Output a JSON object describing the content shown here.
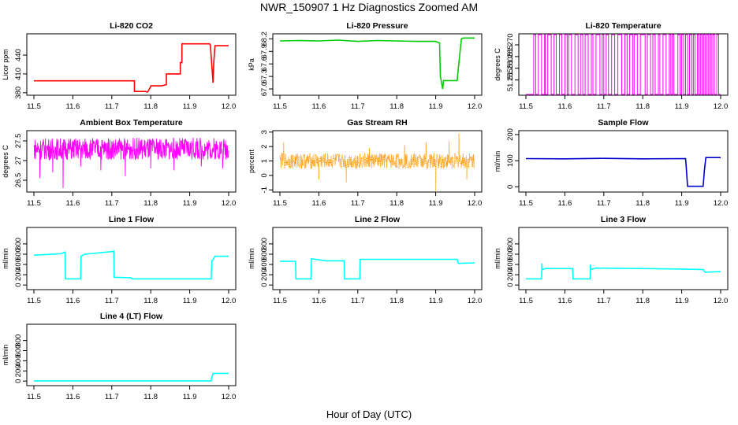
{
  "figure": {
    "title": "NWR_150907  1 Hz Diagnostics Zoomed AM",
    "xlabel": "Hour of Day (UTC)"
  },
  "chart_data": [
    {
      "type": "line",
      "title": "Li-820 CO2",
      "ylabel": "Licor ppm",
      "color": "#ff0000",
      "xlim": [
        11.5,
        12.0
      ],
      "ylim": [
        376,
        474
      ],
      "xticks": [
        "11.5",
        "11.6",
        "11.7",
        "11.8",
        "11.9",
        "12.0"
      ],
      "yticks": [
        {
          "v": 380,
          "label": "380"
        },
        {
          "v": 410,
          "label": "410"
        },
        {
          "v": 440,
          "label": "440"
        }
      ],
      "series": [
        {
          "x": [
            11.5,
            11.758,
            11.758,
            11.786,
            11.792,
            11.8,
            11.8,
            11.828,
            11.84,
            11.84,
            11.876,
            11.876,
            11.88,
            11.88,
            11.951,
            11.953,
            11.958,
            11.96,
            11.962,
            11.965,
            12.0
          ],
          "y": [
            399,
            399,
            382,
            382,
            381,
            390,
            391,
            391,
            393,
            410,
            410,
            428,
            428,
            458,
            458,
            456,
            412,
            396,
            430,
            455,
            455
          ]
        }
      ]
    },
    {
      "type": "line",
      "title": "Li-820 Pressure",
      "ylabel": "kPa",
      "color": "#00cc00",
      "xlim": [
        11.5,
        12.0
      ],
      "ylim": [
        66.85,
        68.32
      ],
      "xticks": [
        "11.5",
        "11.6",
        "11.7",
        "11.8",
        "11.9",
        "12.0"
      ],
      "yticks": [
        {
          "v": 67.0,
          "label": "67.0"
        },
        {
          "v": 67.3,
          "label": "67.3"
        },
        {
          "v": 67.6,
          "label": "67.6"
        },
        {
          "v": 67.9,
          "label": "67.9"
        },
        {
          "v": 68.2,
          "label": "68.2"
        }
      ],
      "series": [
        {
          "x": [
            11.5,
            11.55,
            11.6,
            11.65,
            11.7,
            11.75,
            11.8,
            11.85,
            11.9,
            11.91,
            11.912,
            11.918,
            11.92,
            11.955,
            11.958,
            11.966,
            11.97,
            12.0
          ],
          "y": [
            68.15,
            68.16,
            68.15,
            68.17,
            68.14,
            68.16,
            68.15,
            68.14,
            68.14,
            68.1,
            67.3,
            67.0,
            67.2,
            67.2,
            67.5,
            68.2,
            68.22,
            68.22
          ]
        }
      ]
    },
    {
      "type": "line",
      "title": "Li-820 Temperature",
      "ylabel": "degrees C",
      "color": "#ff00ff",
      "xlim": [
        11.5,
        12.0
      ],
      "ylim": [
        51.2485,
        51.2747
      ],
      "xticks": [
        "11.5",
        "11.6",
        "11.7",
        "11.8",
        "11.9",
        "12.0"
      ],
      "yticks": [
        {
          "v": 51.255,
          "label": "51.255"
        },
        {
          "v": 51.26,
          "label": "51.260"
        },
        {
          "v": 51.265,
          "label": "51.265"
        },
        {
          "v": 51.27,
          "label": "51.270"
        }
      ],
      "levels": [
        51.2485,
        51.2747
      ],
      "switch_times": [
        11.52,
        11.525,
        11.532,
        11.54,
        11.548,
        11.55,
        11.556,
        11.565,
        11.572,
        11.578,
        11.586,
        11.592,
        11.6,
        11.606,
        11.61,
        11.617,
        11.626,
        11.634,
        11.64,
        11.646,
        11.652,
        11.66,
        11.668,
        11.672,
        11.68,
        11.69,
        11.696,
        11.7,
        11.706,
        11.712,
        11.72,
        11.728,
        11.736,
        11.746,
        11.754,
        11.76,
        11.766,
        11.774,
        11.778,
        11.786,
        11.794,
        11.806,
        11.812,
        11.82,
        11.826,
        11.832,
        11.84,
        11.844,
        11.852,
        11.86,
        11.868,
        11.872,
        11.876,
        11.88,
        11.89,
        11.896,
        11.9,
        11.905,
        11.91,
        11.915,
        11.92,
        11.926,
        11.93,
        11.934,
        11.94,
        11.944,
        11.948,
        11.952,
        11.956,
        11.96,
        11.964,
        11.968,
        11.972,
        11.976,
        11.98,
        11.984,
        11.99,
        11.995
      ]
    },
    {
      "type": "line",
      "title": "Ambient Box Temperature",
      "ylabel": "degrees C",
      "color": "#ff00ff",
      "xlim": [
        11.5,
        12.0
      ],
      "ylim": [
        26.2,
        27.76
      ],
      "xticks": [
        "11.5",
        "11.6",
        "11.7",
        "11.8",
        "11.9",
        "12.0"
      ],
      "yticks": [
        {
          "v": 26.5,
          "label": "26.5"
        },
        {
          "v": 27.0,
          "label": "27"
        },
        {
          "v": 27.5,
          "label": "27.5"
        }
      ],
      "noise": {
        "mean": 27.3,
        "amp": 0.28,
        "low_spikes": [
          [
            11.515,
            26.55
          ],
          [
            11.548,
            26.7
          ],
          [
            11.575,
            26.3
          ],
          [
            11.62,
            26.85
          ],
          [
            11.672,
            26.75
          ],
          [
            11.735,
            26.6
          ],
          [
            11.8,
            26.8
          ],
          [
            11.86,
            26.75
          ],
          [
            11.93,
            26.85
          ],
          [
            11.985,
            26.8
          ]
        ]
      }
    },
    {
      "type": "scatter",
      "title": "Gas Stream RH",
      "ylabel": "percent",
      "color": "#ff9900",
      "xlim": [
        11.5,
        12.0
      ],
      "ylim": [
        -1.15,
        3.1
      ],
      "xticks": [
        "11.5",
        "11.6",
        "11.7",
        "11.8",
        "11.9",
        "12.0"
      ],
      "yticks": [
        {
          "v": -1,
          "label": "-1"
        },
        {
          "v": 0,
          "label": "0"
        },
        {
          "v": 1,
          "label": "1"
        },
        {
          "v": 2,
          "label": "2"
        },
        {
          "v": 3,
          "label": "3"
        }
      ],
      "noise": {
        "mean": 1.0,
        "amp": 0.55,
        "spikes": [
          [
            11.51,
            2.3
          ],
          [
            11.6,
            -0.3
          ],
          [
            11.67,
            -0.5
          ],
          [
            11.73,
            1.9
          ],
          [
            11.82,
            2.1
          ],
          [
            11.875,
            2.3
          ],
          [
            11.9,
            -1.1
          ],
          [
            11.935,
            2.4
          ],
          [
            11.96,
            2.9
          ],
          [
            11.98,
            -0.3
          ]
        ]
      }
    },
    {
      "type": "line",
      "title": "Sample Flow",
      "ylabel": "ml/min",
      "color": "#0000cc",
      "xlim": [
        11.5,
        12.0
      ],
      "ylim": [
        -20,
        215
      ],
      "xticks": [
        "11.5",
        "11.6",
        "11.7",
        "11.8",
        "11.9",
        "12.0"
      ],
      "yticks": [
        {
          "v": 0,
          "label": "0"
        },
        {
          "v": 100,
          "label": "100"
        },
        {
          "v": 200,
          "label": "200"
        }
      ],
      "series": [
        {
          "x": [
            11.5,
            11.6,
            11.7,
            11.8,
            11.91,
            11.912,
            11.915,
            11.955,
            11.958,
            11.962,
            12.0
          ],
          "y": [
            108,
            107,
            109,
            107,
            108,
            70,
            2,
            2,
            60,
            112,
            112
          ]
        }
      ]
    },
    {
      "type": "line",
      "title": "Line 1 Flow",
      "ylabel": "ml/min",
      "color": "#00ffff",
      "xlim": [
        11.5,
        12.0
      ],
      "ylim": [
        -90,
        1120
      ],
      "xticks": [
        "11.5",
        "11.6",
        "11.7",
        "11.8",
        "11.9",
        "12.0"
      ],
      "yticks": [
        {
          "v": 0,
          "label": "0"
        },
        {
          "v": 200,
          "label": "200"
        },
        {
          "v": 400,
          "label": "400"
        },
        {
          "v": 600,
          "label": "600"
        },
        {
          "v": 800,
          "label": "800"
        }
      ],
      "series": [
        {
          "x": [
            11.5,
            11.57,
            11.58,
            11.581,
            11.62,
            11.621,
            11.63,
            11.7,
            11.705,
            11.706,
            11.75,
            11.752,
            11.955,
            11.957,
            11.965,
            12.0
          ],
          "y": [
            580,
            610,
            640,
            120,
            120,
            560,
            600,
            650,
            660,
            150,
            140,
            120,
            120,
            460,
            560,
            560
          ]
        }
      ]
    },
    {
      "type": "line",
      "title": "Line 2 Flow",
      "ylabel": "ml/min",
      "color": "#00ffff",
      "xlim": [
        11.5,
        12.0
      ],
      "ylim": [
        -90,
        1120
      ],
      "xticks": [
        "11.5",
        "11.6",
        "11.7",
        "11.8",
        "11.9",
        "12.0"
      ],
      "yticks": [
        {
          "v": 0,
          "label": "0"
        },
        {
          "v": 200,
          "label": "200"
        },
        {
          "v": 400,
          "label": "400"
        },
        {
          "v": 600,
          "label": "600"
        },
        {
          "v": 800,
          "label": "800"
        }
      ],
      "series": [
        {
          "x": [
            11.5,
            11.54,
            11.541,
            11.58,
            11.581,
            11.62,
            11.665,
            11.666,
            11.705,
            11.706,
            11.8,
            11.9,
            11.955,
            11.958,
            12.0
          ],
          "y": [
            460,
            460,
            120,
            120,
            510,
            470,
            470,
            120,
            120,
            500,
            500,
            500,
            500,
            420,
            430
          ]
        }
      ]
    },
    {
      "type": "line",
      "title": "Line 3 Flow",
      "ylabel": "ml/min",
      "color": "#00ffff",
      "xlim": [
        11.5,
        12.0
      ],
      "ylim": [
        -90,
        1120
      ],
      "xticks": [
        "11.5",
        "11.6",
        "11.7",
        "11.8",
        "11.9",
        "12.0"
      ],
      "yticks": [
        {
          "v": 0,
          "label": "0"
        },
        {
          "v": 200,
          "label": "200"
        },
        {
          "v": 400,
          "label": "400"
        },
        {
          "v": 600,
          "label": "600"
        },
        {
          "v": 800,
          "label": "800"
        }
      ],
      "series": [
        {
          "x": [
            11.5,
            11.54,
            11.541,
            11.542,
            11.55,
            11.62,
            11.621,
            11.665,
            11.666,
            11.667,
            11.68,
            11.8,
            11.9,
            11.955,
            11.96,
            12.0
          ],
          "y": [
            120,
            120,
            420,
            300,
            320,
            320,
            120,
            120,
            400,
            300,
            330,
            320,
            310,
            300,
            250,
            260
          ]
        }
      ]
    },
    {
      "type": "line",
      "title": "Line 4 (LT) Flow",
      "ylabel": "ml/min",
      "color": "#00ffff",
      "xlim": [
        11.5,
        12.0
      ],
      "ylim": [
        -90,
        1120
      ],
      "xticks": [
        "11.5",
        "11.6",
        "11.7",
        "11.8",
        "11.9",
        "12.0"
      ],
      "yticks": [
        {
          "v": 0,
          "label": "0"
        },
        {
          "v": 200,
          "label": "200"
        },
        {
          "v": 400,
          "label": "400"
        },
        {
          "v": 600,
          "label": "600"
        },
        {
          "v": 800,
          "label": "800"
        }
      ],
      "series": [
        {
          "x": [
            11.5,
            11.955,
            11.957,
            11.96,
            12.0
          ],
          "y": [
            5,
            5,
            80,
            150,
            150
          ]
        }
      ]
    }
  ]
}
